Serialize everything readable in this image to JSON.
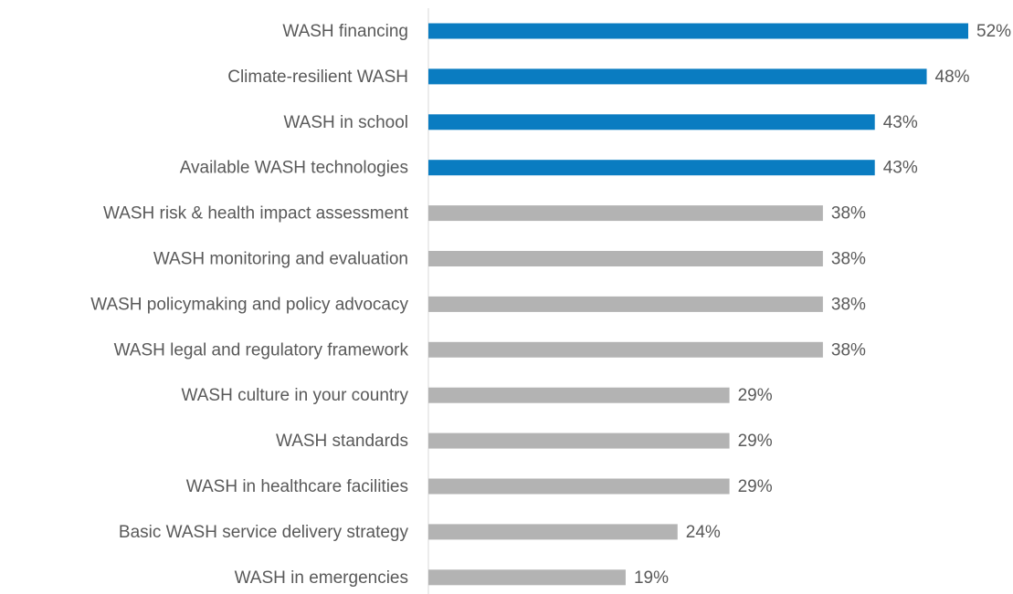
{
  "chart_data": {
    "type": "bar",
    "orientation": "horizontal",
    "categories": [
      "WASH financing",
      "Climate-resilient WASH",
      "WASH in school",
      "Available WASH technologies",
      "WASH risk & health impact assessment",
      "WASH monitoring and evaluation",
      "WASH policymaking and policy advocacy",
      "WASH legal and regulatory framework",
      "WASH culture in your country",
      "WASH standards",
      "WASH in healthcare facilities",
      "Basic WASH service delivery strategy",
      "WASH in emergencies"
    ],
    "values": [
      52,
      48,
      43,
      43,
      38,
      38,
      38,
      38,
      29,
      29,
      29,
      24,
      19
    ],
    "value_labels": [
      "52%",
      "48%",
      "43%",
      "43%",
      "38%",
      "38%",
      "38%",
      "38%",
      "29%",
      "29%",
      "29%",
      "24%",
      "19%"
    ],
    "colors": [
      "#0a7cc1",
      "#0a7cc1",
      "#0a7cc1",
      "#0a7cc1",
      "#b3b3b3",
      "#b3b3b3",
      "#b3b3b3",
      "#b3b3b3",
      "#b3b3b3",
      "#b3b3b3",
      "#b3b3b3",
      "#b3b3b3",
      "#b3b3b3"
    ],
    "grid": false
  }
}
